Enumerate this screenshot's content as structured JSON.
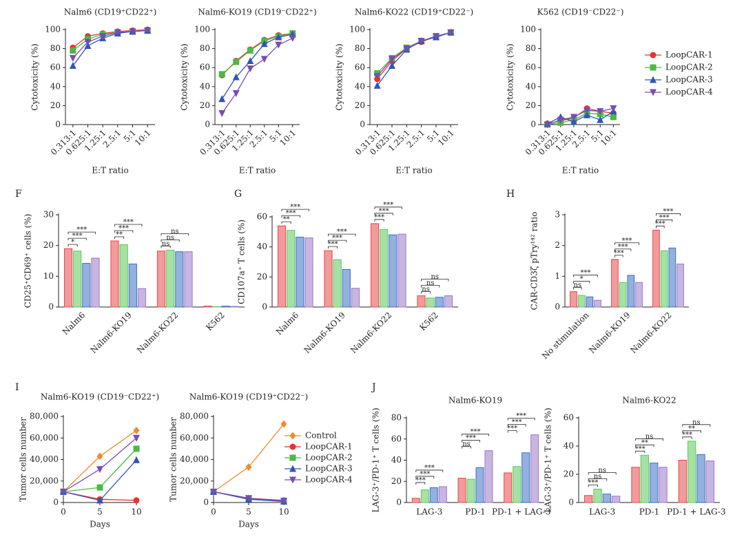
{
  "chart_data": [
    {
      "type": "line",
      "title": "Nalm6 (CD19⁺CD22⁺)",
      "ylabel": "Cytotoxicity (%)",
      "xlabel": "E:T ratio",
      "categories": [
        "0.313:1",
        "0.625:1",
        "1.25:1",
        "2.5:1",
        "5:1",
        "10:1"
      ],
      "ylim": [
        0,
        100
      ],
      "yticks": [
        0,
        20,
        40,
        60,
        80,
        100
      ],
      "xtick_rotation": 45,
      "series": [
        {
          "color": "#e8322f",
          "marker": "circle",
          "values": [
            81,
            93,
            96,
            98,
            99,
            100
          ]
        },
        {
          "color": "#4cb944",
          "marker": "square",
          "values": [
            78,
            90,
            95,
            97,
            98,
            99
          ]
        },
        {
          "color": "#2f55b8",
          "marker": "triangle",
          "values": [
            62,
            83,
            91,
            96,
            98,
            99
          ]
        },
        {
          "color": "#7a4bb5",
          "marker": "triangle-down",
          "values": [
            70,
            87,
            93,
            97,
            98,
            99
          ]
        }
      ]
    },
    {
      "type": "line",
      "title": "Nalm6-KO19 (CD19⁻CD22⁺)",
      "ylabel": "Cytotoxicity (%)",
      "xlabel": "E:T ratio",
      "categories": [
        "0.313:1",
        "0.625:1",
        "1.25:1",
        "2.5:1",
        "5:1",
        "10:1"
      ],
      "ylim": [
        0,
        100
      ],
      "yticks": [
        0,
        20,
        40,
        60,
        80,
        100
      ],
      "xtick_rotation": 45,
      "series": [
        {
          "color": "#e8322f",
          "marker": "circle",
          "values": [
            52,
            67,
            79,
            89,
            94,
            96
          ]
        },
        {
          "color": "#4cb944",
          "marker": "square",
          "values": [
            53,
            66,
            78,
            88,
            93,
            96
          ]
        },
        {
          "color": "#2f55b8",
          "marker": "triangle",
          "values": [
            27,
            50,
            67,
            85,
            92,
            95
          ]
        },
        {
          "color": "#7a4bb5",
          "marker": "triangle-down",
          "values": [
            12,
            33,
            59,
            69,
            84,
            91
          ]
        }
      ]
    },
    {
      "type": "line",
      "title": "Nalm6-KO22 (CD19⁺CD22⁻)",
      "ylabel": "Cytotoxicity (%)",
      "xlabel": "E:T ratio",
      "categories": [
        "0.313:1",
        "0.625:1",
        "1.25:1",
        "2.5:1",
        "5:1",
        "10:1"
      ],
      "ylim": [
        0,
        100
      ],
      "yticks": [
        0,
        20,
        40,
        60,
        80,
        100
      ],
      "xtick_rotation": 45,
      "series": [
        {
          "color": "#e8322f",
          "marker": "circle",
          "values": [
            48,
            67,
            80,
            87,
            93,
            97
          ]
        },
        {
          "color": "#4cb944",
          "marker": "square",
          "values": [
            54,
            70,
            81,
            88,
            93,
            97
          ]
        },
        {
          "color": "#2f55b8",
          "marker": "triangle",
          "values": [
            41,
            62,
            79,
            88,
            92,
            97
          ]
        },
        {
          "color": "#7a4bb5",
          "marker": "triangle-down",
          "values": [
            51,
            69,
            80,
            88,
            93,
            97
          ]
        }
      ]
    },
    {
      "type": "line",
      "title": "K562 (CD19⁻CD22⁻)",
      "ylabel": "Cytotoxicity (%)",
      "xlabel": "E:T ratio",
      "categories": [
        "0.313:1",
        "0.625:1",
        "1.25:1",
        "2.5:1",
        "5:1",
        "10:1"
      ],
      "ylim": [
        0,
        100
      ],
      "yticks": [
        0,
        20,
        40,
        60,
        80,
        100
      ],
      "xtick_rotation": 45,
      "legend": "right",
      "series": [
        {
          "name": "LoopCAR-1",
          "color": "#e8322f",
          "marker": "circle",
          "values": [
            1,
            4,
            7,
            17,
            14,
            12
          ]
        },
        {
          "name": "LoopCAR-2",
          "color": "#4cb944",
          "marker": "square",
          "values": [
            0,
            2,
            5,
            12,
            11,
            8
          ]
        },
        {
          "name": "LoopCAR-3",
          "color": "#2f55b8",
          "marker": "triangle",
          "values": [
            1,
            8,
            3,
            10,
            5,
            14
          ]
        },
        {
          "name": "LoopCAR-4",
          "color": "#7a4bb5",
          "marker": "triangle-down",
          "values": [
            0,
            5,
            8,
            15,
            14,
            17
          ]
        }
      ]
    },
    {
      "type": "bar",
      "panel": "F",
      "ylabel": "CD25⁺CD69⁺ cells (%)",
      "categories": [
        "Nalm6",
        "Nalm6-KO19",
        "Nalm6-KO22",
        "K562"
      ],
      "ylim": [
        0,
        30
      ],
      "yticks": [
        0,
        10,
        20,
        30
      ],
      "xtick_rotation": 45,
      "series": [
        {
          "color": "#e8474a",
          "values": [
            19,
            21.5,
            18.2,
            0.3
          ]
        },
        {
          "color": "#5cc85a",
          "values": [
            18.2,
            20.3,
            18.5,
            0.1
          ]
        },
        {
          "color": "#3b6fc4",
          "values": [
            14.2,
            14,
            18,
            0.3
          ]
        },
        {
          "color": "#9a78c8",
          "values": [
            15.9,
            6,
            18,
            0.2
          ]
        }
      ],
      "significance": [
        [
          "*",
          "***",
          "***"
        ],
        [
          "**",
          "***",
          "***"
        ],
        [
          "ns",
          "ns",
          "ns"
        ],
        []
      ]
    },
    {
      "type": "bar",
      "panel": "G",
      "ylabel": "CD107a⁺ T cells (%)",
      "categories": [
        "Nalm6",
        "Nalm6-KO19",
        "Nalm6-KO22",
        "K562"
      ],
      "ylim": [
        0,
        60
      ],
      "yticks": [
        0,
        20,
        40,
        60
      ],
      "xtick_rotation": 45,
      "series": [
        {
          "color": "#e8474a",
          "values": [
            54,
            37.5,
            55.5,
            7.5
          ]
        },
        {
          "color": "#5cc85a",
          "values": [
            51,
            31.5,
            51.5,
            6
          ]
        },
        {
          "color": "#3b6fc4",
          "values": [
            46.5,
            25,
            48,
            6.5
          ]
        },
        {
          "color": "#9a78c8",
          "values": [
            46,
            12.5,
            48.5,
            7.5
          ]
        }
      ],
      "significance": [
        [
          "**",
          "***",
          "***"
        ],
        [
          "***",
          "***",
          "***"
        ],
        [
          "***",
          "***",
          "***"
        ],
        [
          "ns",
          "ns",
          "ns"
        ]
      ]
    },
    {
      "type": "bar",
      "panel": "H",
      "ylabel": "CAR-CD3ζ pTry¹⁴² ratio",
      "categories": [
        "No stimulation",
        "Nalm6-KO19",
        "Nalm6-KO22"
      ],
      "ylim": [
        0,
        3
      ],
      "yticks": [
        0,
        1,
        2,
        3
      ],
      "xtick_rotation": 45,
      "series": [
        {
          "color": "#e8474a",
          "values": [
            0.5,
            1.55,
            2.5
          ]
        },
        {
          "color": "#5cc85a",
          "values": [
            0.38,
            0.8,
            1.83
          ]
        },
        {
          "color": "#3b6fc4",
          "values": [
            0.33,
            1.03,
            1.92
          ]
        },
        {
          "color": "#9a78c8",
          "values": [
            0.22,
            0.8,
            1.4
          ]
        }
      ],
      "significance": [
        [
          "ns",
          "*",
          "***"
        ],
        [
          "***",
          "***",
          "***"
        ],
        [
          "***",
          "***",
          "***"
        ]
      ]
    },
    {
      "type": "line",
      "panel": "I",
      "title": "Nalm6-KO19 (CD19⁻CD22⁺)",
      "ylabel": "Tumor cells number",
      "xlabel": "Days",
      "x": [
        0,
        5,
        10
      ],
      "xlim": [
        0,
        10
      ],
      "xticks": [
        0,
        5,
        10
      ],
      "ylim": [
        0,
        80000
      ],
      "yticks": [
        0,
        {
          "value": 20000,
          "label": "20,000"
        },
        {
          "value": 40000,
          "label": "40,000"
        },
        {
          "value": 60000,
          "label": "60,000"
        },
        {
          "value": 80000,
          "label": "80,000"
        }
      ],
      "series": [
        {
          "color": "#f08a2c",
          "marker": "diamond",
          "values": [
            10000,
            43000,
            67000
          ]
        },
        {
          "color": "#e8322f",
          "marker": "circle",
          "values": [
            10000,
            3000,
            2000
          ]
        },
        {
          "color": "#4cb944",
          "marker": "square",
          "values": [
            10000,
            14000,
            50000
          ]
        },
        {
          "color": "#2f55b8",
          "marker": "triangle",
          "values": [
            10000,
            2000,
            39500
          ]
        },
        {
          "color": "#7a4bb5",
          "marker": "triangle-down",
          "values": [
            10000,
            31000,
            60000
          ]
        }
      ]
    },
    {
      "type": "line",
      "title": "Nalm6-KO19 (CD19⁺CD22⁻)",
      "ylabel": "Tumor cells number",
      "xlabel": "Days",
      "legend": "right",
      "x": [
        0,
        5,
        10
      ],
      "xlim": [
        0,
        10
      ],
      "xticks": [
        0,
        5,
        10
      ],
      "ylim": [
        0,
        80000
      ],
      "yticks": [
        0,
        {
          "value": 20000,
          "label": "20,000"
        },
        {
          "value": 40000,
          "label": "40,000"
        },
        {
          "value": 60000,
          "label": "60,000"
        },
        {
          "value": 80000,
          "label": "80,000"
        }
      ],
      "series": [
        {
          "name": "Control",
          "color": "#f08a2c",
          "marker": "diamond",
          "values": [
            10000,
            33000,
            73000
          ]
        },
        {
          "name": "LoopCAR-1",
          "color": "#e8322f",
          "marker": "circle",
          "values": [
            10000,
            4000,
            2000
          ]
        },
        {
          "name": "LoopCAR-2",
          "color": "#4cb944",
          "marker": "square",
          "values": [
            10000,
            3500,
            1500
          ]
        },
        {
          "name": "LoopCAR-3",
          "color": "#2f55b8",
          "marker": "triangle",
          "values": [
            10000,
            3000,
            1000
          ]
        },
        {
          "name": "LoopCAR-4",
          "color": "#7a4bb5",
          "marker": "triangle-down",
          "values": [
            10000,
            4000,
            1500
          ]
        }
      ]
    },
    {
      "type": "bar",
      "panel": "J",
      "title": "Nalm6-KO19",
      "ylabel": "LAG-3⁺/PD-1⁺ T cells (%)",
      "categories": [
        "LAG-3",
        "PD-1",
        "PD-1 + LAG-3"
      ],
      "ylim": [
        0,
        80
      ],
      "yticks": [
        0,
        20,
        40,
        60,
        80
      ],
      "xtick_rotation": 0,
      "series": [
        {
          "color": "#e8474a",
          "values": [
            4,
            23,
            28
          ]
        },
        {
          "color": "#5cc85a",
          "values": [
            12,
            22,
            34
          ]
        },
        {
          "color": "#3b6fc4",
          "values": [
            14,
            33,
            47
          ]
        },
        {
          "color": "#9a78c8",
          "values": [
            15,
            49,
            64
          ]
        }
      ],
      "significance": [
        [
          "***",
          "***",
          "***"
        ],
        [
          "ns",
          "***",
          "***"
        ],
        [
          "***",
          "***",
          "***"
        ]
      ]
    },
    {
      "type": "bar",
      "title": "Nalm6-KO22",
      "ylabel": "LAG-3⁺/PD-1⁺ T cells (%)",
      "categories": [
        "LAG-3",
        "PD-1",
        "PD-1 + LAG-3"
      ],
      "ylim": [
        0,
        60
      ],
      "yticks": [
        0,
        20,
        40,
        60
      ],
      "xtick_rotation": 0,
      "series": [
        {
          "color": "#e8474a",
          "values": [
            5,
            25,
            30
          ]
        },
        {
          "color": "#5cc85a",
          "values": [
            9.5,
            33.5,
            43.5
          ]
        },
        {
          "color": "#3b6fc4",
          "values": [
            6,
            28,
            34
          ]
        },
        {
          "color": "#9a78c8",
          "values": [
            4.5,
            25,
            29.5
          ]
        }
      ],
      "significance": [
        [
          "***",
          "ns",
          "ns"
        ],
        [
          "***",
          "**",
          "ns"
        ],
        [
          "***",
          "**",
          "ns"
        ]
      ]
    }
  ]
}
